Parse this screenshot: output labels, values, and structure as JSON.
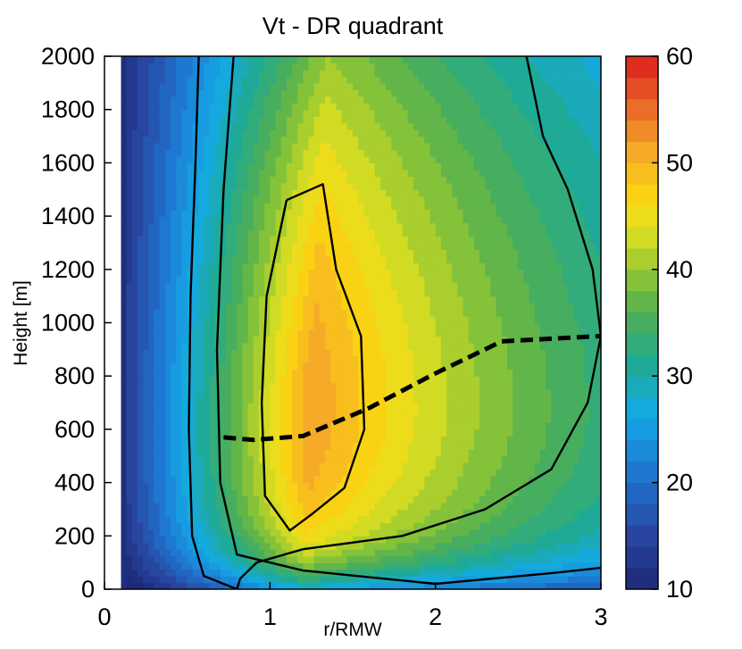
{
  "chart_data": {
    "type": "heatmap",
    "title": "Vt - DR quadrant",
    "xlabel": "r/RMW",
    "ylabel": "Height [m]",
    "xlim": [
      0,
      3
    ],
    "ylim": [
      0,
      2000
    ],
    "x_ticks": [
      "0",
      "1",
      "2",
      "3"
    ],
    "y_ticks": [
      "0",
      "200",
      "400",
      "600",
      "800",
      "1000",
      "1200",
      "1400",
      "1600",
      "1800",
      "2000"
    ],
    "colorbar": {
      "min": 10,
      "max": 60,
      "levels": 25,
      "ticks": [
        "10",
        "20",
        "30",
        "40",
        "50",
        "60"
      ]
    },
    "grid": false,
    "legend": "none",
    "field_description_points": {
      "max_wind_region": {
        "r": 1.2,
        "height": 650,
        "value": 52
      },
      "contour_levels_drawn": [
        30,
        40,
        50
      ]
    },
    "dashed_line": {
      "name": "",
      "x": [
        0.72,
        0.9,
        1.2,
        1.6,
        2.0,
        2.4,
        3.0
      ],
      "y": [
        570,
        560,
        575,
        680,
        810,
        930,
        950
      ]
    },
    "contour_30": {
      "x": [
        0.57,
        0.55,
        0.52,
        0.51,
        0.53,
        0.6,
        0.8
      ],
      "y": [
        2000,
        1600,
        1100,
        600,
        200,
        50,
        0
      ]
    },
    "contour_40_outer": {
      "x": [
        0.78,
        0.72,
        0.68,
        0.7,
        0.8,
        1.2,
        2.0,
        2.7,
        3.0
      ],
      "y": [
        2000,
        1500,
        900,
        400,
        130,
        70,
        20,
        60,
        80
      ]
    },
    "contour_40_right": {
      "x": [
        2.55,
        2.65,
        2.8,
        2.95,
        3.0,
        2.92,
        2.7,
        2.3,
        1.8,
        1.2,
        0.92,
        0.82,
        0.8
      ],
      "y": [
        2000,
        1700,
        1500,
        1200,
        950,
        700,
        450,
        300,
        200,
        150,
        100,
        40,
        0
      ]
    },
    "contour_50": {
      "x": [
        1.1,
        1.1,
        1.32,
        1.4,
        1.55,
        1.57,
        1.45,
        1.25,
        1.12,
        0.97,
        0.95,
        0.98,
        1.1
      ],
      "y": [
        1460,
        1460,
        1520,
        1200,
        950,
        600,
        380,
        280,
        220,
        350,
        700,
        1100,
        1460
      ]
    }
  }
}
